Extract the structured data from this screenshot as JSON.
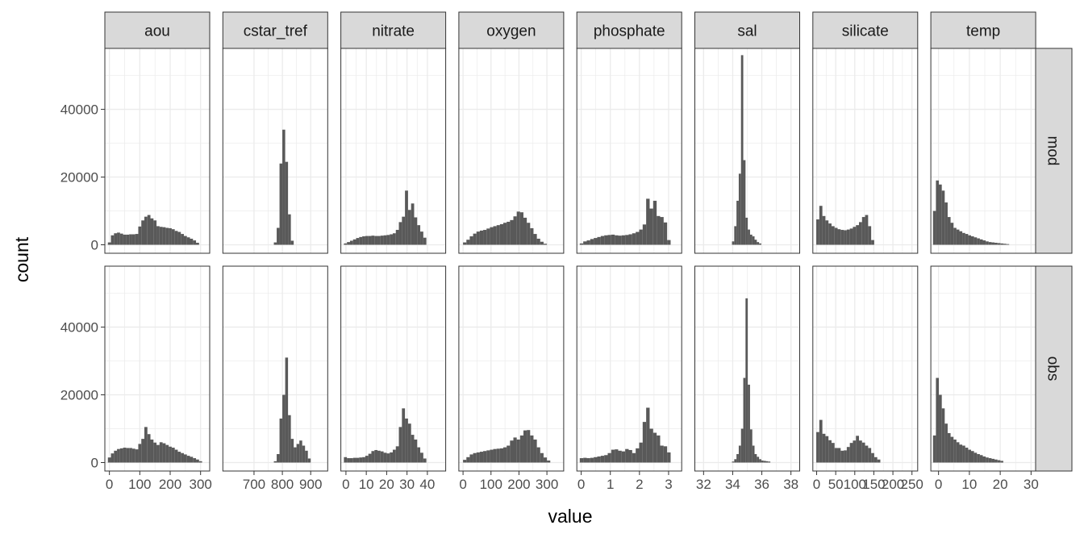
{
  "chart_data": {
    "type": "bar",
    "subtype": "faceted-histogram",
    "xlabel": "value",
    "ylabel": "count",
    "ylim": [
      -2500,
      58000
    ],
    "yticks": [
      0,
      20000,
      40000
    ],
    "yticklabels": [
      "0",
      "20000",
      "40000"
    ],
    "grid": true,
    "colors": {
      "bar": "#595959",
      "strip_bg": "#d9d9d9",
      "grid": "#ebebeb",
      "panel_border": "#333333",
      "text": "#1a1a1a",
      "tick_text": "#4d4d4d"
    },
    "row_labels": [
      "mod",
      "obs"
    ],
    "facets": [
      {
        "label": "aou",
        "xlim": [
          -15,
          330
        ],
        "ticks": [
          0,
          100,
          200,
          300
        ],
        "ticklabels": [
          "0",
          "100",
          "200",
          "300"
        ],
        "bin_start": -5,
        "bin_width": 10,
        "mod": [
          700,
          2800,
          3400,
          3600,
          3300,
          3000,
          3000,
          3100,
          3100,
          3200,
          5400,
          7200,
          8300,
          8800,
          7800,
          7200,
          5500,
          5300,
          5200,
          5000,
          4900,
          4600,
          4100,
          3800,
          3200,
          2600,
          2200,
          1800,
          1300,
          600
        ],
        "obs": [
          1500,
          2700,
          3500,
          4000,
          4200,
          4400,
          4300,
          4300,
          4100,
          3900,
          5500,
          7000,
          10500,
          8400,
          6800,
          5900,
          5200,
          6000,
          5700,
          5200,
          4700,
          4400,
          3800,
          3200,
          2800,
          2400,
          2000,
          1700,
          1300,
          900,
          400
        ]
      },
      {
        "label": "cstar_tref",
        "xlim": [
          590,
          960
        ],
        "ticks": [
          700,
          800,
          900
        ],
        "ticklabels": [
          "700",
          "800",
          "900"
        ],
        "bin_start": 770,
        "bin_width": 10,
        "mod": [
          700,
          5000,
          24000,
          34000,
          24500,
          9000,
          1200
        ],
        "obs": [
          400,
          2500,
          13000,
          20000,
          31000,
          14000,
          7000,
          4500,
          5500,
          6500,
          5000,
          3500,
          1200
        ]
      },
      {
        "label": "nitrate",
        "xlim": [
          -2.5,
          49
        ],
        "ticks": [
          0,
          10,
          20,
          30,
          40
        ],
        "ticklabels": [
          "0",
          "10",
          "20",
          "30",
          "40"
        ],
        "bin_start": -1,
        "bin_width": 1.5,
        "mod": [
          400,
          800,
          1200,
          1600,
          2000,
          2300,
          2500,
          2600,
          2600,
          2700,
          2600,
          2600,
          2700,
          2800,
          2900,
          3100,
          3400,
          4400,
          6700,
          8300,
          16000,
          10300,
          12200,
          8100,
          5800,
          3900,
          2100
        ],
        "obs": [
          1600,
          1300,
          1300,
          1400,
          1400,
          1500,
          1600,
          2000,
          2600,
          3400,
          3700,
          3500,
          3300,
          2900,
          2700,
          3000,
          3800,
          4800,
          10500,
          16000,
          13000,
          11500,
          8200,
          6800,
          4500,
          2900,
          1200
        ]
      },
      {
        "label": "oxygen",
        "xlim": [
          -15,
          360
        ],
        "ticks": [
          0,
          100,
          200,
          300
        ],
        "ticklabels": [
          "0",
          "100",
          "200",
          "300"
        ],
        "bin_start": 0,
        "bin_width": 12,
        "mod": [
          700,
          1500,
          2500,
          3300,
          3900,
          4200,
          4400,
          4800,
          5200,
          5500,
          5800,
          6100,
          6500,
          6800,
          7300,
          8400,
          9800,
          9600,
          8000,
          6500,
          4900,
          3200,
          1800,
          900,
          300
        ],
        "obs": [
          800,
          1600,
          2400,
          2800,
          3000,
          3200,
          3400,
          3600,
          3800,
          4000,
          4100,
          4200,
          4500,
          5000,
          6500,
          7400,
          6800,
          8000,
          9500,
          9600,
          8000,
          6800,
          4500,
          2800,
          1500,
          600
        ]
      },
      {
        "label": "phosphate",
        "xlim": [
          -0.15,
          3.45
        ],
        "ticks": [
          0,
          1,
          2,
          3
        ],
        "ticklabels": [
          "0",
          "1",
          "2",
          "3"
        ],
        "bin_start": -0.05,
        "bin_width": 0.12,
        "mod": [
          400,
          1000,
          1300,
          1700,
          2000,
          2300,
          2600,
          2800,
          2900,
          3000,
          2800,
          2700,
          2800,
          2900,
          3100,
          3400,
          3800,
          4500,
          6000,
          13600,
          10700,
          13000,
          8500,
          8200,
          6600,
          1400
        ],
        "obs": [
          1300,
          1400,
          1300,
          1400,
          1600,
          1800,
          2000,
          2200,
          2800,
          3800,
          3900,
          3500,
          3300,
          4000,
          3700,
          2800,
          4200,
          5900,
          12000,
          16200,
          10000,
          8800,
          8000,
          5000,
          4800,
          3000
        ]
      },
      {
        "label": "sal",
        "xlim": [
          31.4,
          38.6
        ],
        "ticks": [
          32,
          34,
          36,
          38
        ],
        "ticklabels": [
          "32",
          "34",
          "36",
          "38"
        ],
        "bin_start": 33.95,
        "bin_width": 0.155,
        "mod": [
          1000,
          5500,
          13000,
          21000,
          56000,
          25000,
          8000,
          4500,
          3000,
          2500,
          1500,
          800,
          400
        ],
        "obs": [
          300,
          1000,
          2500,
          5000,
          10000,
          25000,
          48500,
          23000,
          9800,
          5000,
          2500,
          1700,
          1000,
          600,
          500,
          400,
          300
        ]
      },
      {
        "label": "silicate",
        "xlim": [
          -10,
          265
        ],
        "ticks": [
          0,
          50,
          100,
          150,
          200,
          250
        ],
        "ticklabels": [
          "0",
          "50",
          "100",
          "150",
          "200",
          "250"
        ],
        "bin_start": -1,
        "bin_width": 8,
        "mod": [
          7500,
          11500,
          8500,
          7200,
          6300,
          5500,
          5000,
          4600,
          4400,
          4300,
          4500,
          4800,
          5300,
          5800,
          6700,
          8200,
          8800,
          5500,
          1400
        ],
        "obs": [
          9000,
          12600,
          8500,
          7800,
          6600,
          5800,
          4300,
          4300,
          3500,
          3600,
          4600,
          5800,
          6500,
          7900,
          6500,
          5900,
          5000,
          4300,
          2800,
          1600,
          900
        ]
      },
      {
        "label": "temp",
        "xlim": [
          -2.5,
          31.5
        ],
        "ticks": [
          0,
          10,
          20,
          30
        ],
        "ticklabels": [
          "0",
          "10",
          "20",
          "30"
        ],
        "bin_start": -1.8,
        "bin_width": 0.95,
        "mod": [
          10000,
          19000,
          17800,
          16000,
          12500,
          8200,
          6500,
          5000,
          4500,
          4000,
          3500,
          3200,
          2800,
          2500,
          2200,
          1900,
          1600,
          1300,
          1000,
          800,
          700,
          600,
          500,
          400,
          300,
          200
        ],
        "obs": [
          8000,
          25000,
          20000,
          16000,
          11500,
          8700,
          7600,
          6800,
          6000,
          5300,
          5000,
          4400,
          3800,
          3400,
          2900,
          2500,
          2200,
          1800,
          1500,
          1300,
          1100,
          900,
          700,
          500
        ]
      }
    ]
  }
}
